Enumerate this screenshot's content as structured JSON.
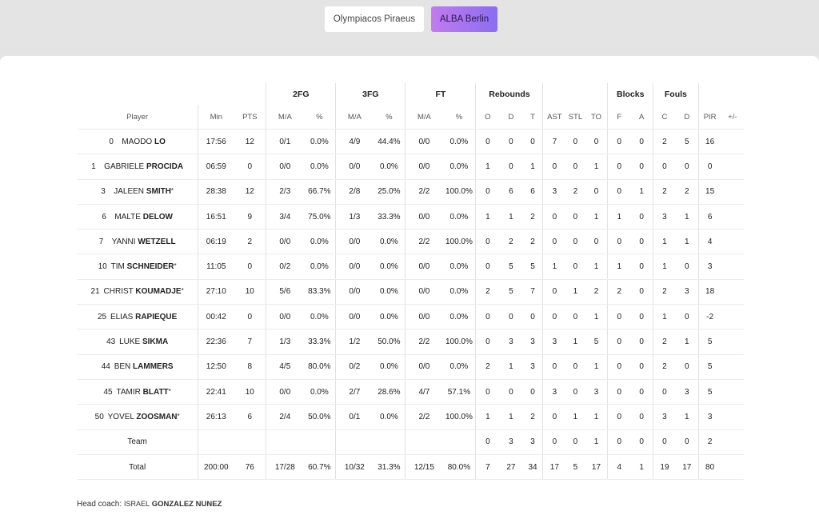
{
  "teams": {
    "home": "Olympiacos Piraeus",
    "away": "ALBA Berlin"
  },
  "group_headers": {
    "fg2": "2FG",
    "fg3": "3FG",
    "ft": "FT",
    "rebounds": "Rebounds",
    "blocks": "Blocks",
    "fouls": "Fouls"
  },
  "columns": {
    "player": "Player",
    "min": "Min",
    "pts": "PTS",
    "fg2_ma": "M/A",
    "fg2_pct": "%",
    "fg3_ma": "M/A",
    "fg3_pct": "%",
    "ft_ma": "M/A",
    "ft_pct": "%",
    "reb_o": "O",
    "reb_d": "D",
    "reb_t": "T",
    "ast": "AST",
    "stl": "STL",
    "to": "TO",
    "blk_f": "F",
    "blk_a": "A",
    "foul_c": "C",
    "foul_d": "D",
    "pir": "PIR",
    "pm": "+/-"
  },
  "players": [
    {
      "num": "0",
      "first": "MAODO",
      "last": "LO",
      "star": "",
      "min": "17:56",
      "pts": "12",
      "fg2": "0/1",
      "fg2p": "0.0%",
      "fg3": "4/9",
      "fg3p": "44.4%",
      "ft": "0/0",
      "ftp": "0.0%",
      "o": "0",
      "d": "0",
      "t": "0",
      "ast": "7",
      "stl": "0",
      "to": "0",
      "bf": "0",
      "ba": "0",
      "fc": "2",
      "fd": "5",
      "pir": "16",
      "pm": ""
    },
    {
      "num": "1",
      "first": "GABRIELE",
      "last": "PROCIDA",
      "star": "",
      "min": "06:59",
      "pts": "0",
      "fg2": "0/0",
      "fg2p": "0.0%",
      "fg3": "0/0",
      "fg3p": "0.0%",
      "ft": "0/0",
      "ftp": "0.0%",
      "o": "1",
      "d": "0",
      "t": "1",
      "ast": "0",
      "stl": "0",
      "to": "1",
      "bf": "0",
      "ba": "0",
      "fc": "0",
      "fd": "0",
      "pir": "0",
      "pm": ""
    },
    {
      "num": "3",
      "first": "JALEEN",
      "last": "SMITH",
      "star": "*",
      "min": "28:38",
      "pts": "12",
      "fg2": "2/3",
      "fg2p": "66.7%",
      "fg3": "2/8",
      "fg3p": "25.0%",
      "ft": "2/2",
      "ftp": "100.0%",
      "o": "0",
      "d": "6",
      "t": "6",
      "ast": "3",
      "stl": "2",
      "to": "0",
      "bf": "0",
      "ba": "1",
      "fc": "2",
      "fd": "2",
      "pir": "15",
      "pm": ""
    },
    {
      "num": "6",
      "first": "MALTE",
      "last": "DELOW",
      "star": "",
      "min": "16:51",
      "pts": "9",
      "fg2": "3/4",
      "fg2p": "75.0%",
      "fg3": "1/3",
      "fg3p": "33.3%",
      "ft": "0/0",
      "ftp": "0.0%",
      "o": "1",
      "d": "1",
      "t": "2",
      "ast": "0",
      "stl": "0",
      "to": "1",
      "bf": "1",
      "ba": "0",
      "fc": "3",
      "fd": "1",
      "pir": "6",
      "pm": ""
    },
    {
      "num": "7",
      "first": "YANNI",
      "last": "WETZELL",
      "star": "",
      "min": "06:19",
      "pts": "2",
      "fg2": "0/0",
      "fg2p": "0.0%",
      "fg3": "0/0",
      "fg3p": "0.0%",
      "ft": "2/2",
      "ftp": "100.0%",
      "o": "0",
      "d": "2",
      "t": "2",
      "ast": "0",
      "stl": "0",
      "to": "0",
      "bf": "0",
      "ba": "0",
      "fc": "1",
      "fd": "1",
      "pir": "4",
      "pm": ""
    },
    {
      "num": "10",
      "first": "TIM",
      "last": "SCHNEIDER",
      "star": "*",
      "min": "11:05",
      "pts": "0",
      "fg2": "0/2",
      "fg2p": "0.0%",
      "fg3": "0/0",
      "fg3p": "0.0%",
      "ft": "0/0",
      "ftp": "0.0%",
      "o": "0",
      "d": "5",
      "t": "5",
      "ast": "1",
      "stl": "0",
      "to": "1",
      "bf": "1",
      "ba": "0",
      "fc": "1",
      "fd": "0",
      "pir": "3",
      "pm": ""
    },
    {
      "num": "21",
      "first": "CHRIST",
      "last": "KOUMADJE",
      "star": "*",
      "min": "27:10",
      "pts": "10",
      "fg2": "5/6",
      "fg2p": "83.3%",
      "fg3": "0/0",
      "fg3p": "0.0%",
      "ft": "0/0",
      "ftp": "0.0%",
      "o": "2",
      "d": "5",
      "t": "7",
      "ast": "0",
      "stl": "1",
      "to": "2",
      "bf": "2",
      "ba": "0",
      "fc": "2",
      "fd": "3",
      "pir": "18",
      "pm": ""
    },
    {
      "num": "25",
      "first": "ELIAS",
      "last": "RAPIEQUE",
      "star": "",
      "min": "00:42",
      "pts": "0",
      "fg2": "0/0",
      "fg2p": "0.0%",
      "fg3": "0/0",
      "fg3p": "0.0%",
      "ft": "0/0",
      "ftp": "0.0%",
      "o": "0",
      "d": "0",
      "t": "0",
      "ast": "0",
      "stl": "0",
      "to": "1",
      "bf": "0",
      "ba": "0",
      "fc": "1",
      "fd": "0",
      "pir": "-2",
      "pm": ""
    },
    {
      "num": "43",
      "first": "LUKE",
      "last": "SIKMA",
      "star": "",
      "min": "22:36",
      "pts": "7",
      "fg2": "1/3",
      "fg2p": "33.3%",
      "fg3": "1/2",
      "fg3p": "50.0%",
      "ft": "2/2",
      "ftp": "100.0%",
      "o": "0",
      "d": "3",
      "t": "3",
      "ast": "3",
      "stl": "1",
      "to": "5",
      "bf": "0",
      "ba": "0",
      "fc": "2",
      "fd": "1",
      "pir": "5",
      "pm": ""
    },
    {
      "num": "44",
      "first": "BEN",
      "last": "LAMMERS",
      "star": "",
      "min": "12:50",
      "pts": "8",
      "fg2": "4/5",
      "fg2p": "80.0%",
      "fg3": "0/2",
      "fg3p": "0.0%",
      "ft": "0/0",
      "ftp": "0.0%",
      "o": "2",
      "d": "1",
      "t": "3",
      "ast": "0",
      "stl": "0",
      "to": "1",
      "bf": "0",
      "ba": "0",
      "fc": "2",
      "fd": "0",
      "pir": "5",
      "pm": ""
    },
    {
      "num": "45",
      "first": "TAMIR",
      "last": "BLATT",
      "star": "*",
      "min": "22:41",
      "pts": "10",
      "fg2": "0/0",
      "fg2p": "0.0%",
      "fg3": "2/7",
      "fg3p": "28.6%",
      "ft": "4/7",
      "ftp": "57.1%",
      "o": "0",
      "d": "0",
      "t": "0",
      "ast": "3",
      "stl": "0",
      "to": "3",
      "bf": "0",
      "ba": "0",
      "fc": "0",
      "fd": "3",
      "pir": "5",
      "pm": ""
    },
    {
      "num": "50",
      "first": "YOVEL",
      "last": "ZOOSMAN",
      "star": "*",
      "min": "26:13",
      "pts": "6",
      "fg2": "2/4",
      "fg2p": "50.0%",
      "fg3": "0/1",
      "fg3p": "0.0%",
      "ft": "2/2",
      "ftp": "100.0%",
      "o": "1",
      "d": "1",
      "t": "2",
      "ast": "0",
      "stl": "1",
      "to": "1",
      "bf": "0",
      "ba": "0",
      "fc": "3",
      "fd": "1",
      "pir": "3",
      "pm": ""
    }
  ],
  "team_row": {
    "label": "Team",
    "min": "",
    "pts": "",
    "fg2": "",
    "fg2p": "",
    "fg3": "",
    "fg3p": "",
    "ft": "",
    "ftp": "",
    "o": "0",
    "d": "3",
    "t": "3",
    "ast": "0",
    "stl": "0",
    "to": "1",
    "bf": "0",
    "ba": "0",
    "fc": "0",
    "fd": "0",
    "pir": "2",
    "pm": ""
  },
  "total_row": {
    "label": "Total",
    "min": "200:00",
    "pts": "76",
    "fg2": "17/28",
    "fg2p": "60.7%",
    "fg3": "10/32",
    "fg3p": "31.3%",
    "ft": "12/15",
    "ftp": "80.0%",
    "o": "7",
    "d": "27",
    "t": "34",
    "ast": "17",
    "stl": "5",
    "to": "17",
    "bf": "4",
    "ba": "1",
    "fc": "19",
    "fd": "17",
    "pir": "80",
    "pm": ""
  },
  "coach": {
    "label": "Head coach:",
    "first": "ISRAEL",
    "last": "GONZALEZ NUNEZ"
  }
}
